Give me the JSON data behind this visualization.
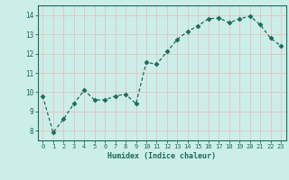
{
  "x": [
    0,
    1,
    2,
    3,
    4,
    5,
    6,
    7,
    8,
    9,
    10,
    11,
    12,
    13,
    14,
    15,
    16,
    17,
    18,
    19,
    20,
    21,
    22,
    23
  ],
  "y": [
    9.8,
    7.9,
    8.6,
    9.4,
    10.1,
    9.6,
    9.6,
    9.8,
    9.9,
    9.4,
    11.55,
    11.45,
    12.1,
    12.75,
    13.15,
    13.45,
    13.8,
    13.85,
    13.6,
    13.8,
    13.95,
    13.5,
    12.8,
    12.4
  ],
  "line_color": "#1a6b5a",
  "marker": "D",
  "marker_size": 2.5,
  "bg_color": "#cceee8",
  "grid_color": "#e8b8b8",
  "xlabel": "Humidex (Indice chaleur)",
  "ylim": [
    7.5,
    14.5
  ],
  "xlim": [
    -0.5,
    23.5
  ],
  "yticks": [
    8,
    9,
    10,
    11,
    12,
    13,
    14
  ],
  "xticks": [
    0,
    1,
    2,
    3,
    4,
    5,
    6,
    7,
    8,
    9,
    10,
    11,
    12,
    13,
    14,
    15,
    16,
    17,
    18,
    19,
    20,
    21,
    22,
    23
  ],
  "tick_color": "#1a6b5a",
  "font_color": "#1a6b5a"
}
